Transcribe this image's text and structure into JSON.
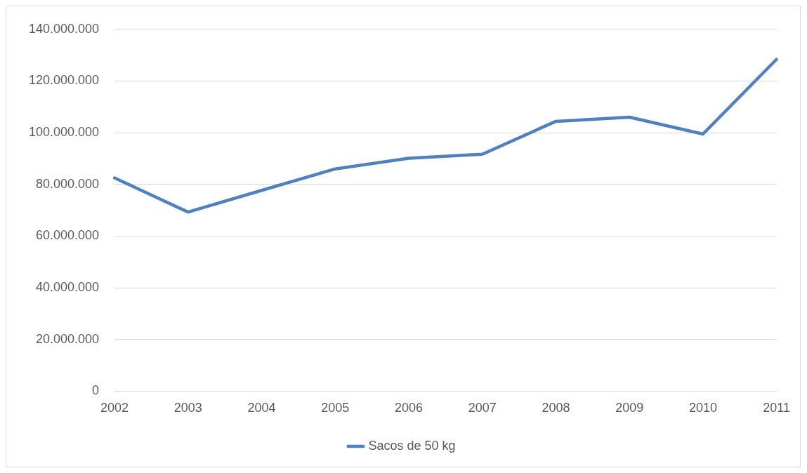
{
  "chart_data": {
    "type": "line",
    "categories": [
      "2002",
      "2003",
      "2004",
      "2005",
      "2006",
      "2007",
      "2008",
      "2009",
      "2010",
      "2011"
    ],
    "series": [
      {
        "name": "Sacos de 50 kg",
        "color": "#4f81bd",
        "values": [
          82500000,
          69300000,
          77700000,
          86000000,
          90100000,
          91700000,
          104400000,
          106000000,
          99500000,
          128400000
        ]
      }
    ],
    "ylim": [
      0,
      140000000
    ],
    "yticks": [
      {
        "value": 0,
        "label": "0"
      },
      {
        "value": 20000000,
        "label": "20.000.000"
      },
      {
        "value": 40000000,
        "label": "40.000.000"
      },
      {
        "value": 60000000,
        "label": "60.000.000"
      },
      {
        "value": 80000000,
        "label": "80.000.000"
      },
      {
        "value": 100000000,
        "label": "100.000.000"
      },
      {
        "value": 120000000,
        "label": "120.000.000"
      },
      {
        "value": 140000000,
        "label": "140.000.000"
      }
    ],
    "grid": "y",
    "legend": "bottom",
    "marker": "none",
    "line_style": "solid"
  }
}
